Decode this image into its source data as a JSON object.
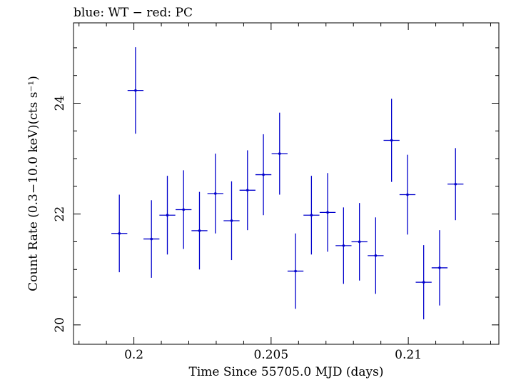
{
  "chart_data": {
    "type": "scatter",
    "title": "blue: WT − red: PC",
    "xlabel": "Time Since 55705.0 MJD (days)",
    "ylabel": "Count Rate (0.3−10.0 keV)(cts s⁻¹)",
    "xlim": [
      0.1978,
      0.2133
    ],
    "ylim": [
      19.65,
      25.45
    ],
    "x_ticks": [
      0.2,
      0.205,
      0.21
    ],
    "x_tick_labels": [
      "0.2",
      "0.205",
      "0.21"
    ],
    "y_ticks": [
      20,
      22,
      24
    ],
    "y_tick_labels": [
      "20",
      "22",
      "24"
    ],
    "grid": false,
    "series": [
      {
        "color": "#0000cc",
        "points": [
          {
            "x": 0.19947,
            "xerr": 0.00029,
            "y": 21.65,
            "yerr": 0.7
          },
          {
            "x": 0.20006,
            "xerr": 0.00029,
            "y": 24.23,
            "yerr": 0.78
          },
          {
            "x": 0.20064,
            "xerr": 0.00029,
            "y": 21.55,
            "yerr": 0.7
          },
          {
            "x": 0.20122,
            "xerr": 0.00029,
            "y": 21.98,
            "yerr": 0.71
          },
          {
            "x": 0.20181,
            "xerr": 0.00029,
            "y": 22.08,
            "yerr": 0.71
          },
          {
            "x": 0.20239,
            "xerr": 0.00029,
            "y": 21.7,
            "yerr": 0.7
          },
          {
            "x": 0.20297,
            "xerr": 0.00029,
            "y": 22.37,
            "yerr": 0.72
          },
          {
            "x": 0.20356,
            "xerr": 0.00029,
            "y": 21.88,
            "yerr": 0.71
          },
          {
            "x": 0.20414,
            "xerr": 0.00029,
            "y": 22.43,
            "yerr": 0.72
          },
          {
            "x": 0.20472,
            "xerr": 0.00029,
            "y": 22.71,
            "yerr": 0.73
          },
          {
            "x": 0.20531,
            "xerr": 0.00029,
            "y": 23.09,
            "yerr": 0.74
          },
          {
            "x": 0.20589,
            "xerr": 0.00029,
            "y": 20.97,
            "yerr": 0.68
          },
          {
            "x": 0.20647,
            "xerr": 0.00029,
            "y": 21.98,
            "yerr": 0.71
          },
          {
            "x": 0.20706,
            "xerr": 0.00029,
            "y": 22.03,
            "yerr": 0.71
          },
          {
            "x": 0.20764,
            "xerr": 0.00029,
            "y": 21.43,
            "yerr": 0.69
          },
          {
            "x": 0.20822,
            "xerr": 0.00029,
            "y": 21.5,
            "yerr": 0.7
          },
          {
            "x": 0.20881,
            "xerr": 0.00029,
            "y": 21.25,
            "yerr": 0.69
          },
          {
            "x": 0.20939,
            "xerr": 0.00029,
            "y": 23.33,
            "yerr": 0.75
          },
          {
            "x": 0.20997,
            "xerr": 0.00029,
            "y": 22.35,
            "yerr": 0.72
          },
          {
            "x": 0.21056,
            "xerr": 0.00029,
            "y": 20.77,
            "yerr": 0.67
          },
          {
            "x": 0.21114,
            "xerr": 0.00029,
            "y": 21.03,
            "yerr": 0.68
          },
          {
            "x": 0.21172,
            "xerr": 0.00029,
            "y": 22.54,
            "yerr": 0.65
          }
        ]
      }
    ]
  }
}
